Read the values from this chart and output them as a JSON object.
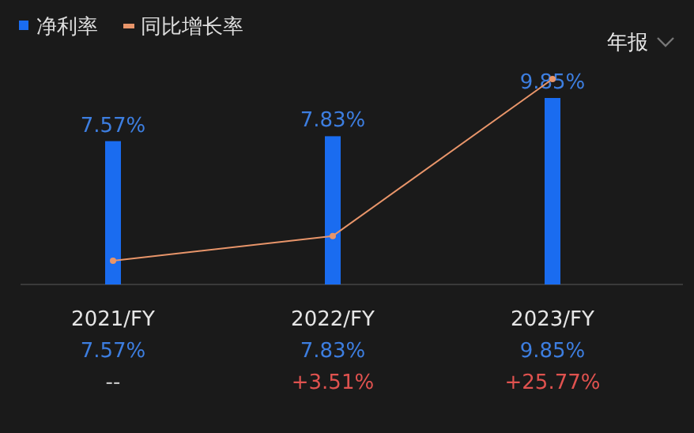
{
  "chart_data": {
    "type": "bar",
    "categories": [
      "2021/FY",
      "2022/FY",
      "2023/FY"
    ],
    "series": [
      {
        "name": "净利率",
        "color": "#1a6cf0",
        "values": [
          7.57,
          7.83,
          9.85
        ],
        "value_labels": [
          "7.57%",
          "7.83%",
          "9.85%"
        ]
      },
      {
        "name": "同比增长率",
        "type": "line",
        "axis": "y2",
        "color": "#e8956a",
        "values": [
          0,
          3.51,
          25.77
        ],
        "value_labels": [
          "--",
          "+3.51%",
          "+25.77%"
        ]
      }
    ],
    "grid": false,
    "legend": "top left",
    "marker": "circle",
    "annotations": [
      "年报"
    ]
  }
}
